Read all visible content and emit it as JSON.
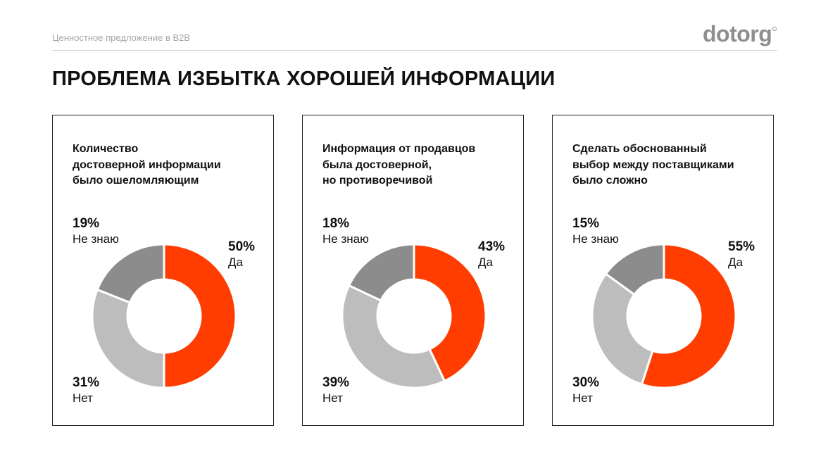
{
  "header": {
    "subtitle": "Ценностное предложение в B2B",
    "logo": "dotorg"
  },
  "page_title": "ПРОБЛЕМА ИЗБЫТКА ХОРОШЕЙ ИНФОРМАЦИИ",
  "colors": {
    "yes": "#ff3d00",
    "no": "#bdbdbd",
    "unknown": "#8c8c8c",
    "text": "#111111",
    "muted": "#a6a6a6"
  },
  "chart_data": [
    {
      "type": "pie",
      "title": "Количество\nдостоверной информации\nбыло ошеломляющим",
      "slices": [
        {
          "label": "Да",
          "value": 50,
          "value_text": "50%"
        },
        {
          "label": "Нет",
          "value": 31,
          "value_text": "31%"
        },
        {
          "label": "Не знаю",
          "value": 19,
          "value_text": "19%"
        }
      ]
    },
    {
      "type": "pie",
      "title": "Информация от продавцов\nбыла достоверной,\nно противоречивой",
      "slices": [
        {
          "label": "Да",
          "value": 43,
          "value_text": "43%"
        },
        {
          "label": "Нет",
          "value": 39,
          "value_text": "39%"
        },
        {
          "label": "Не знаю",
          "value": 18,
          "value_text": "18%"
        }
      ]
    },
    {
      "type": "pie",
      "title": "Сделать обоснованный\nвыбор между поставщиками\nбыло сложно",
      "slices": [
        {
          "label": "Да",
          "value": 55,
          "value_text": "55%"
        },
        {
          "label": "Нет",
          "value": 30,
          "value_text": "30%"
        },
        {
          "label": "Не знаю",
          "value": 15,
          "value_text": "15%"
        }
      ]
    }
  ]
}
